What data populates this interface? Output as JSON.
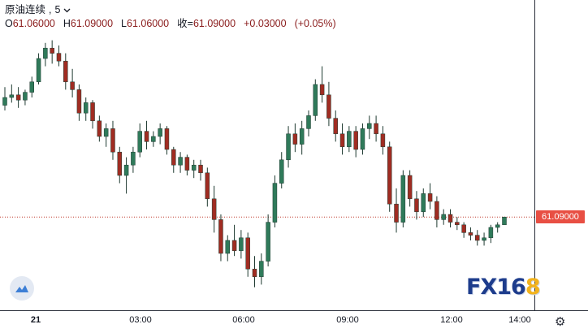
{
  "legend": {
    "symbol": "原油连续",
    "interval": "5",
    "dropdown_icon": "chevron-down-icon",
    "open_label": "O",
    "open": "61.06000",
    "high_label": "H",
    "high": "61.09000",
    "low_label": "L",
    "low": "61.06000",
    "close_label": "收=",
    "close": "61.09000",
    "change": "+0.03000",
    "change_pct": "(+0.05%)"
  },
  "price_label": "61.09000",
  "colors": {
    "up": "#2f7a5a",
    "down": "#a02c22",
    "wick": "#1e3a30",
    "price_line": "#c0392b",
    "price_label_bg": "#e84f43"
  },
  "watermark": {
    "text": "FX16",
    "highlight": "8"
  },
  "icons": {
    "logo": "tradingview-logo-icon",
    "settings": "gear-icon"
  },
  "chart_data": {
    "type": "candlestick",
    "x_ticks": [
      {
        "label": "21",
        "bold": true,
        "time": 0
      },
      {
        "label": "03:00",
        "bold": false,
        "time": 180
      },
      {
        "label": "06:00",
        "bold": false,
        "time": 360
      },
      {
        "label": "09:00",
        "bold": false,
        "time": 540
      },
      {
        "label": "12:00",
        "bold": false,
        "time": 720
      },
      {
        "label": "14:00",
        "bold": false,
        "time": 840
      }
    ],
    "ylim": [
      60.8,
      61.8
    ],
    "current_price": 61.09,
    "series": [
      {
        "o": 61.52,
        "h": 61.59,
        "l": 61.5,
        "c": 61.55
      },
      {
        "o": 61.55,
        "h": 61.6,
        "l": 61.53,
        "c": 61.56
      },
      {
        "o": 61.56,
        "h": 61.59,
        "l": 61.51,
        "c": 61.54
      },
      {
        "o": 61.54,
        "h": 61.58,
        "l": 61.52,
        "c": 61.57
      },
      {
        "o": 61.57,
        "h": 61.63,
        "l": 61.55,
        "c": 61.61
      },
      {
        "o": 61.61,
        "h": 61.72,
        "l": 61.6,
        "c": 61.7
      },
      {
        "o": 61.7,
        "h": 61.76,
        "l": 61.67,
        "c": 61.74
      },
      {
        "o": 61.74,
        "h": 61.77,
        "l": 61.68,
        "c": 61.72
      },
      {
        "o": 61.72,
        "h": 61.75,
        "l": 61.67,
        "c": 61.69
      },
      {
        "o": 61.69,
        "h": 61.72,
        "l": 61.58,
        "c": 61.61
      },
      {
        "o": 61.61,
        "h": 61.66,
        "l": 61.55,
        "c": 61.58
      },
      {
        "o": 61.58,
        "h": 61.6,
        "l": 61.46,
        "c": 61.49
      },
      {
        "o": 61.49,
        "h": 61.55,
        "l": 61.46,
        "c": 61.53
      },
      {
        "o": 61.53,
        "h": 61.54,
        "l": 61.43,
        "c": 61.46
      },
      {
        "o": 61.46,
        "h": 61.48,
        "l": 61.38,
        "c": 61.4
      },
      {
        "o": 61.4,
        "h": 61.45,
        "l": 61.36,
        "c": 61.43
      },
      {
        "o": 61.43,
        "h": 61.46,
        "l": 61.31,
        "c": 61.34
      },
      {
        "o": 61.34,
        "h": 61.36,
        "l": 61.22,
        "c": 61.25
      },
      {
        "o": 61.25,
        "h": 61.32,
        "l": 61.18,
        "c": 61.29
      },
      {
        "o": 61.29,
        "h": 61.36,
        "l": 61.26,
        "c": 61.34
      },
      {
        "o": 61.34,
        "h": 61.45,
        "l": 61.32,
        "c": 61.42
      },
      {
        "o": 61.42,
        "h": 61.46,
        "l": 61.35,
        "c": 61.38
      },
      {
        "o": 61.38,
        "h": 61.42,
        "l": 61.36,
        "c": 61.4
      },
      {
        "o": 61.4,
        "h": 61.45,
        "l": 61.37,
        "c": 61.43
      },
      {
        "o": 61.43,
        "h": 61.44,
        "l": 61.33,
        "c": 61.35
      },
      {
        "o": 61.35,
        "h": 61.36,
        "l": 61.26,
        "c": 61.29
      },
      {
        "o": 61.29,
        "h": 61.34,
        "l": 61.26,
        "c": 61.32
      },
      {
        "o": 61.32,
        "h": 61.33,
        "l": 61.25,
        "c": 61.27
      },
      {
        "o": 61.27,
        "h": 61.31,
        "l": 61.24,
        "c": 61.29
      },
      {
        "o": 61.29,
        "h": 61.31,
        "l": 61.23,
        "c": 61.26
      },
      {
        "o": 61.26,
        "h": 61.28,
        "l": 61.13,
        "c": 61.16
      },
      {
        "o": 61.16,
        "h": 61.21,
        "l": 61.03,
        "c": 61.08
      },
      {
        "o": 61.08,
        "h": 61.1,
        "l": 60.92,
        "c": 60.95
      },
      {
        "o": 60.95,
        "h": 61.02,
        "l": 60.92,
        "c": 61.0
      },
      {
        "o": 61.0,
        "h": 61.06,
        "l": 60.94,
        "c": 60.96
      },
      {
        "o": 60.96,
        "h": 61.04,
        "l": 60.93,
        "c": 61.01
      },
      {
        "o": 61.01,
        "h": 61.03,
        "l": 60.86,
        "c": 60.89
      },
      {
        "o": 60.89,
        "h": 60.94,
        "l": 60.82,
        "c": 60.86
      },
      {
        "o": 60.86,
        "h": 60.95,
        "l": 60.83,
        "c": 60.92
      },
      {
        "o": 60.92,
        "h": 61.1,
        "l": 60.9,
        "c": 61.07
      },
      {
        "o": 61.07,
        "h": 61.25,
        "l": 61.05,
        "c": 61.22
      },
      {
        "o": 61.22,
        "h": 61.34,
        "l": 61.2,
        "c": 61.31
      },
      {
        "o": 61.31,
        "h": 61.44,
        "l": 61.28,
        "c": 61.41
      },
      {
        "o": 61.41,
        "h": 61.45,
        "l": 61.34,
        "c": 61.37
      },
      {
        "o": 61.37,
        "h": 61.46,
        "l": 61.33,
        "c": 61.43
      },
      {
        "o": 61.43,
        "h": 61.5,
        "l": 61.4,
        "c": 61.48
      },
      {
        "o": 61.48,
        "h": 61.62,
        "l": 61.46,
        "c": 61.6
      },
      {
        "o": 61.6,
        "h": 61.67,
        "l": 61.53,
        "c": 61.56
      },
      {
        "o": 61.56,
        "h": 61.61,
        "l": 61.44,
        "c": 61.47
      },
      {
        "o": 61.47,
        "h": 61.5,
        "l": 61.38,
        "c": 61.41
      },
      {
        "o": 61.41,
        "h": 61.45,
        "l": 61.33,
        "c": 61.36
      },
      {
        "o": 61.36,
        "h": 61.44,
        "l": 61.34,
        "c": 61.42
      },
      {
        "o": 61.42,
        "h": 61.44,
        "l": 61.32,
        "c": 61.35
      },
      {
        "o": 61.35,
        "h": 61.45,
        "l": 61.33,
        "c": 61.43
      },
      {
        "o": 61.43,
        "h": 61.48,
        "l": 61.39,
        "c": 61.45
      },
      {
        "o": 61.45,
        "h": 61.48,
        "l": 61.38,
        "c": 61.41
      },
      {
        "o": 61.41,
        "h": 61.44,
        "l": 61.33,
        "c": 61.36
      },
      {
        "o": 61.36,
        "h": 61.38,
        "l": 61.11,
        "c": 61.14
      },
      {
        "o": 61.14,
        "h": 61.2,
        "l": 61.03,
        "c": 61.07
      },
      {
        "o": 61.07,
        "h": 61.27,
        "l": 61.05,
        "c": 61.25
      },
      {
        "o": 61.25,
        "h": 61.27,
        "l": 61.13,
        "c": 61.16
      },
      {
        "o": 61.16,
        "h": 61.19,
        "l": 61.08,
        "c": 61.11
      },
      {
        "o": 61.11,
        "h": 61.2,
        "l": 61.09,
        "c": 61.18
      },
      {
        "o": 61.18,
        "h": 61.22,
        "l": 61.12,
        "c": 61.15
      },
      {
        "o": 61.15,
        "h": 61.17,
        "l": 61.05,
        "c": 61.08
      },
      {
        "o": 61.08,
        "h": 61.12,
        "l": 61.06,
        "c": 61.1
      },
      {
        "o": 61.1,
        "h": 61.12,
        "l": 61.05,
        "c": 61.07
      },
      {
        "o": 61.07,
        "h": 61.09,
        "l": 61.04,
        "c": 61.06
      },
      {
        "o": 61.06,
        "h": 61.07,
        "l": 61.01,
        "c": 61.03
      },
      {
        "o": 61.03,
        "h": 61.05,
        "l": 61.0,
        "c": 61.02
      },
      {
        "o": 61.02,
        "h": 61.04,
        "l": 60.98,
        "c": 61.0
      },
      {
        "o": 61.0,
        "h": 61.03,
        "l": 60.98,
        "c": 61.01
      },
      {
        "o": 61.01,
        "h": 61.06,
        "l": 60.99,
        "c": 61.05
      },
      {
        "o": 61.05,
        "h": 61.07,
        "l": 61.03,
        "c": 61.06
      },
      {
        "o": 61.06,
        "h": 61.09,
        "l": 61.06,
        "c": 61.09
      }
    ]
  }
}
